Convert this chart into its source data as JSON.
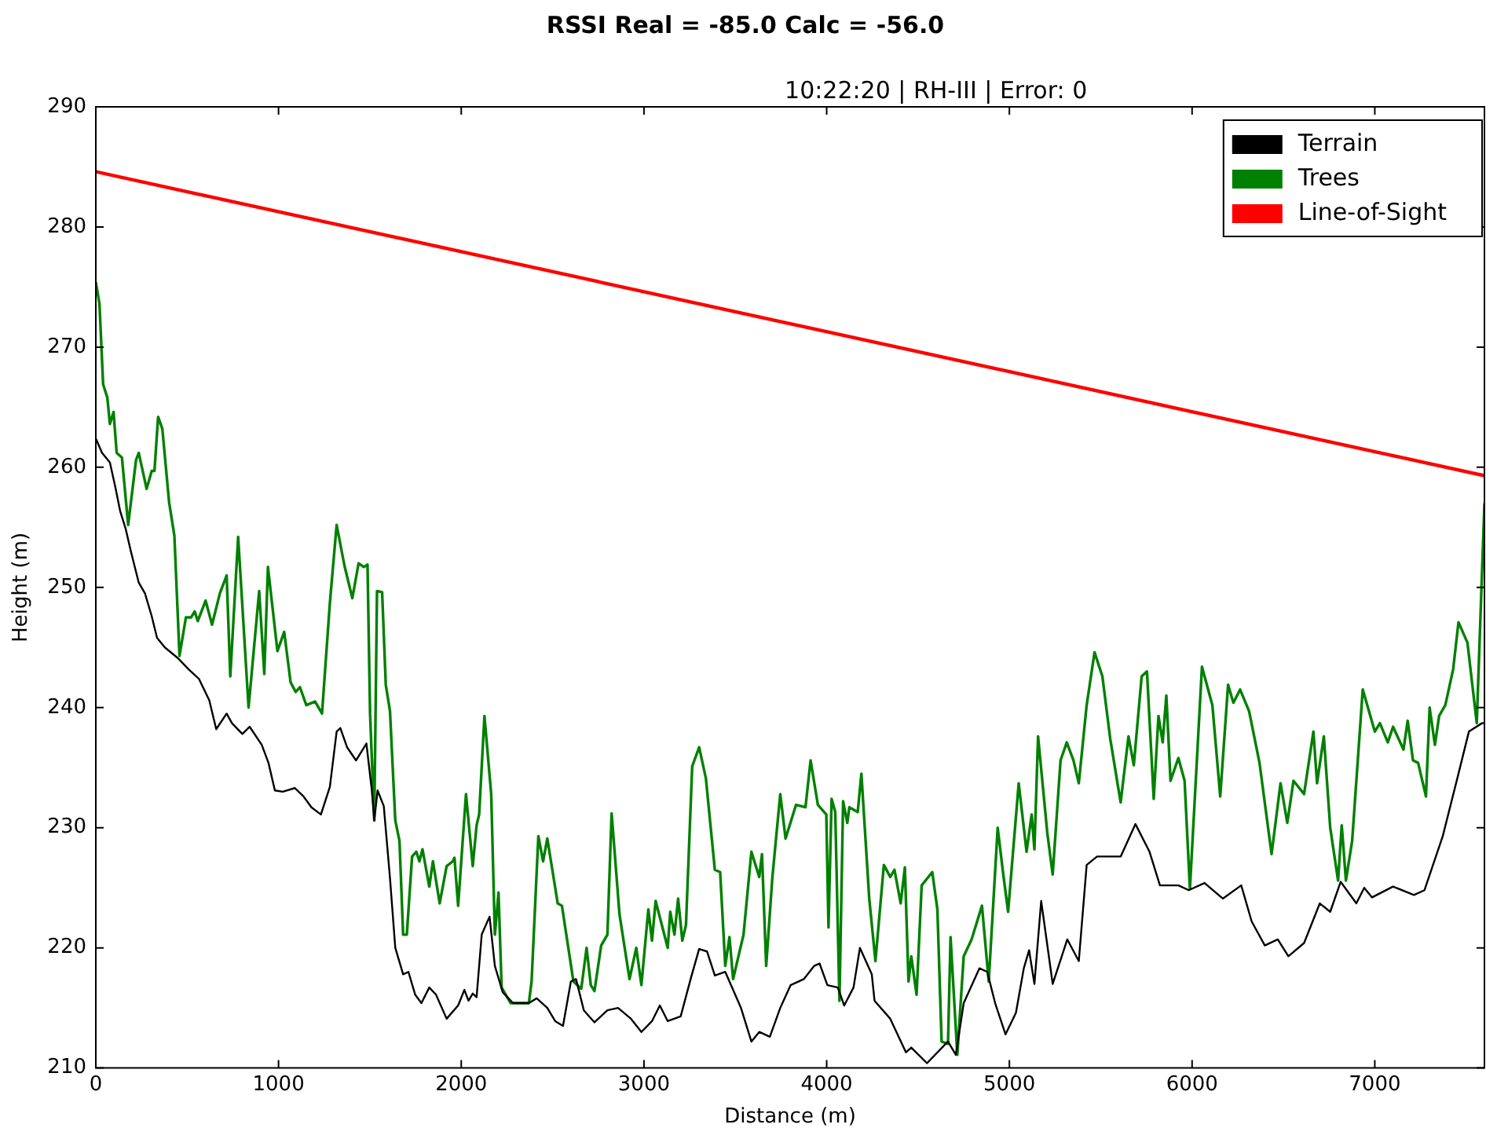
{
  "chart_data": {
    "type": "line",
    "title": "RSSI Real = -85.0 Calc = -56.0",
    "subtitle": "10:22:20 | RH-III | Error: 0",
    "xlabel": "Distance (m)",
    "ylabel": "Height (m)",
    "xlim": [
      0,
      7600
    ],
    "xticks": [
      0,
      1000,
      2000,
      3000,
      4000,
      5000,
      6000,
      7000
    ],
    "ylim": [
      210,
      290
    ],
    "yticks": [
      210,
      220,
      230,
      240,
      250,
      260,
      270,
      280,
      290
    ],
    "grid": false,
    "legend": "top right",
    "marker": "none",
    "line_style": "solid",
    "series": [
      {
        "name": "Terrain",
        "color": "#000000",
        "x": [
          0,
          34,
          77,
          106,
          134,
          163,
          192,
          235,
          269,
          306,
          335,
          378,
          450,
          507,
          564,
          621,
          659,
          716,
          745,
          802,
          842,
          908,
          945,
          980,
          1023,
          1089,
          1137,
          1180,
          1232,
          1281,
          1318,
          1338,
          1375,
          1424,
          1481,
          1510,
          1524,
          1542,
          1576,
          1610,
          1639,
          1682,
          1711,
          1748,
          1782,
          1825,
          1862,
          1920,
          1983,
          2017,
          2040,
          2063,
          2084,
          2112,
          2155,
          2184,
          2227,
          2284,
          2370,
          2413,
          2471,
          2514,
          2557,
          2600,
          2628,
          2671,
          2729,
          2800,
          2858,
          2929,
          2986,
          3044,
          3087,
          3130,
          3201,
          3259,
          3302,
          3345,
          3388,
          3445,
          3531,
          3588,
          3631,
          3689,
          3746,
          3803,
          3875,
          3932,
          3961,
          4004,
          4061,
          4096,
          4147,
          4182,
          4247,
          4262,
          4348,
          4434,
          4463,
          4549,
          4664,
          4707,
          4750,
          4836,
          4879,
          4922,
          4979,
          5036,
          5079,
          5108,
          5137,
          5174,
          5237,
          5317,
          5380,
          5423,
          5480,
          5609,
          5690,
          5767,
          5824,
          5925,
          5982,
          6068,
          6168,
          6269,
          6326,
          6398,
          6469,
          6527,
          6613,
          6699,
          6756,
          6813,
          6899,
          6942,
          6985,
          7100,
          7214,
          7272,
          7372,
          7458,
          7515,
          7587,
          7600
        ],
        "values": [
          262.4,
          261.2,
          260.4,
          258.4,
          256.3,
          254.9,
          253.0,
          250.4,
          249.5,
          247.6,
          245.8,
          245.0,
          244.1,
          243.2,
          242.4,
          240.6,
          238.2,
          239.5,
          238.7,
          237.8,
          238.4,
          236.9,
          235.4,
          233.1,
          233.0,
          233.3,
          232.6,
          231.7,
          231.1,
          233.4,
          238.0,
          238.3,
          236.7,
          235.6,
          237.0,
          233.2,
          230.6,
          233.1,
          231.8,
          225.8,
          220.0,
          217.8,
          218.0,
          216.1,
          215.4,
          216.7,
          216.1,
          214.1,
          215.2,
          216.5,
          215.6,
          216.2,
          215.9,
          221.1,
          222.6,
          218.5,
          216.3,
          215.4,
          215.4,
          215.8,
          215.0,
          213.9,
          213.5,
          217.2,
          217.4,
          214.8,
          213.8,
          214.8,
          215.0,
          214.1,
          213.0,
          213.9,
          215.2,
          213.9,
          214.3,
          217.6,
          219.9,
          219.7,
          217.7,
          218.0,
          215.0,
          212.2,
          213.0,
          212.6,
          215.0,
          216.9,
          217.4,
          218.5,
          218.7,
          216.9,
          216.7,
          215.2,
          216.7,
          220.0,
          217.8,
          215.6,
          214.1,
          211.3,
          211.7,
          210.4,
          212.2,
          211.1,
          215.4,
          218.3,
          218.0,
          215.4,
          212.8,
          214.6,
          218.3,
          219.8,
          217.0,
          223.9,
          217.0,
          220.7,
          218.9,
          226.9,
          227.6,
          227.6,
          230.3,
          228.0,
          225.2,
          225.2,
          224.8,
          225.4,
          224.1,
          225.2,
          222.2,
          220.2,
          220.7,
          219.3,
          220.4,
          223.7,
          223.0,
          225.5,
          223.7,
          225.0,
          224.2,
          225.1,
          224.4,
          224.8,
          229.3,
          234.5,
          238.0,
          238.7,
          238.7
        ]
      },
      {
        "name": "Trees",
        "color": "#008000",
        "x": [
          0,
          20,
          40,
          63,
          77,
          97,
          114,
          143,
          177,
          220,
          235,
          278,
          306,
          321,
          341,
          364,
          401,
          430,
          458,
          493,
          521,
          541,
          558,
          601,
          636,
          679,
          716,
          736,
          779,
          836,
          894,
          922,
          942,
          994,
          1031,
          1066,
          1094,
          1117,
          1152,
          1200,
          1238,
          1281,
          1318,
          1361,
          1404,
          1438,
          1467,
          1487,
          1501,
          1524,
          1539,
          1567,
          1587,
          1610,
          1639,
          1662,
          1682,
          1702,
          1731,
          1754,
          1771,
          1788,
          1825,
          1845,
          1882,
          1920,
          1954,
          1963,
          1983,
          2026,
          2063,
          2084,
          2098,
          2127,
          2164,
          2184,
          2204,
          2221,
          2270,
          2327,
          2370,
          2385,
          2422,
          2448,
          2471,
          2528,
          2551,
          2614,
          2657,
          2686,
          2709,
          2729,
          2766,
          2800,
          2823,
          2866,
          2921,
          2958,
          2986,
          3024,
          3044,
          3064,
          3130,
          3144,
          3167,
          3187,
          3210,
          3230,
          3264,
          3302,
          3339,
          3388,
          3417,
          3445,
          3468,
          3488,
          3545,
          3588,
          3631,
          3646,
          3669,
          3703,
          3746,
          3775,
          3832,
          3884,
          3912,
          3952,
          3998,
          4010,
          4027,
          4047,
          4070,
          4090,
          4113,
          4124,
          4170,
          4190,
          4233,
          4267,
          4313,
          4348,
          4371,
          4405,
          4428,
          4448,
          4463,
          4492,
          4520,
          4578,
          4606,
          4629,
          4664,
          4678,
          4715,
          4750,
          4793,
          4850,
          4887,
          4936,
          4965,
          4993,
          5051,
          5094,
          5122,
          5137,
          5157,
          5208,
          5237,
          5280,
          5314,
          5351,
          5380,
          5423,
          5466,
          5509,
          5552,
          5609,
          5652,
          5681,
          5724,
          5753,
          5790,
          5816,
          5839,
          5859,
          5882,
          5925,
          5959,
          5988,
          6054,
          6111,
          6154,
          6197,
          6226,
          6263,
          6312,
          6369,
          6435,
          6484,
          6521,
          6555,
          6613,
          6664,
          6684,
          6721,
          6756,
          6799,
          6819,
          6842,
          6876,
          6934,
          7000,
          7028,
          7071,
          7100,
          7157,
          7180,
          7209,
          7237,
          7280,
          7300,
          7329,
          7352,
          7386,
          7429,
          7458,
          7507,
          7558,
          7600
        ],
        "values": [
          275.4,
          273.6,
          266.9,
          265.8,
          263.6,
          264.6,
          261.2,
          260.8,
          255.2,
          260.6,
          261.2,
          258.2,
          259.7,
          259.7,
          264.2,
          263.2,
          257.1,
          254.3,
          244.3,
          247.5,
          247.5,
          248.0,
          247.2,
          248.9,
          246.9,
          249.5,
          251.0,
          242.6,
          254.2,
          240.0,
          249.7,
          242.8,
          251.7,
          244.7,
          246.3,
          242.1,
          241.3,
          241.7,
          240.2,
          240.5,
          239.5,
          248.7,
          255.2,
          251.8,
          249.1,
          252.0,
          251.7,
          251.9,
          239.5,
          230.6,
          249.7,
          249.6,
          241.9,
          239.7,
          230.6,
          228.9,
          221.1,
          221.1,
          227.6,
          228.0,
          227.2,
          228.2,
          225.1,
          227.2,
          223.7,
          226.8,
          227.2,
          227.5,
          223.5,
          232.8,
          226.8,
          230.2,
          231.1,
          239.3,
          232.8,
          221.1,
          224.6,
          216.7,
          215.4,
          215.4,
          215.4,
          217.2,
          229.3,
          227.2,
          229.1,
          223.7,
          223.5,
          217.2,
          216.6,
          220.0,
          216.9,
          216.4,
          220.2,
          221.1,
          231.2,
          222.8,
          217.4,
          220.0,
          216.9,
          223.2,
          220.6,
          223.9,
          220.0,
          223.0,
          221.1,
          224.1,
          220.6,
          221.9,
          235.1,
          236.7,
          234.1,
          226.5,
          226.3,
          218.5,
          220.9,
          217.4,
          221.1,
          228.0,
          225.9,
          227.8,
          218.5,
          225.9,
          232.8,
          229.1,
          231.9,
          231.7,
          235.6,
          231.9,
          231.1,
          221.7,
          232.4,
          231.3,
          215.6,
          232.2,
          230.4,
          231.7,
          231.3,
          234.5,
          224.1,
          218.9,
          226.9,
          225.9,
          226.5,
          223.7,
          226.7,
          217.2,
          219.3,
          216.1,
          225.2,
          226.3,
          223.2,
          212.2,
          212.0,
          220.9,
          211.1,
          219.3,
          220.7,
          223.5,
          217.2,
          230.0,
          226.3,
          223.0,
          233.7,
          228.0,
          231.1,
          228.2,
          237.6,
          229.5,
          226.1,
          235.6,
          237.1,
          235.6,
          233.7,
          240.2,
          244.6,
          242.6,
          237.4,
          232.1,
          237.6,
          235.2,
          242.6,
          243.0,
          232.4,
          239.3,
          237.1,
          241.0,
          233.9,
          235.8,
          233.9,
          224.9,
          243.4,
          240.2,
          232.6,
          241.9,
          240.4,
          241.5,
          239.7,
          235.4,
          227.8,
          233.7,
          230.4,
          233.9,
          232.8,
          238.0,
          233.7,
          237.6,
          230.0,
          225.6,
          230.2,
          225.6,
          228.9,
          241.5,
          238.0,
          238.7,
          237.1,
          238.4,
          236.5,
          238.9,
          235.6,
          235.4,
          232.6,
          240.0,
          236.9,
          239.3,
          240.2,
          243.2,
          247.1,
          245.4,
          238.7,
          257.0
        ]
      },
      {
        "name": "Line-of-Sight",
        "color": "#ff0000",
        "x": [
          0,
          7600
        ],
        "values": [
          284.6,
          259.3
        ]
      }
    ]
  }
}
